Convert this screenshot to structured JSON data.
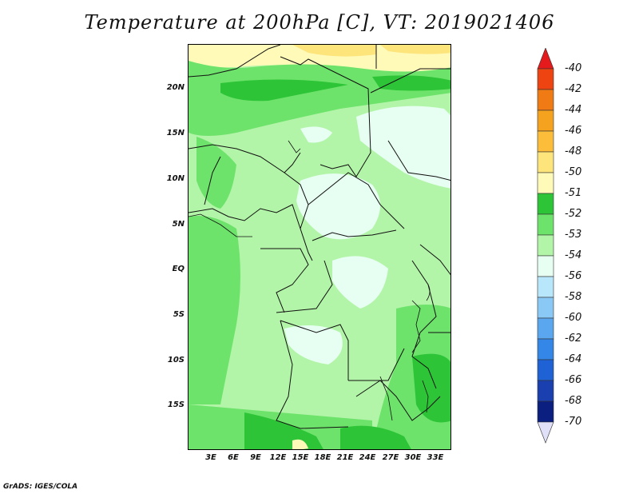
{
  "title": "Temperature at 200hPa [C], VT: 2019021406",
  "credit": "GrADS: IGES/COLA",
  "lat_ticks": [
    "20N",
    "15N",
    "10N",
    "5N",
    "EQ",
    "5S",
    "10S",
    "15S"
  ],
  "lon_ticks": [
    "3E",
    "6E",
    "9E",
    "12E",
    "15E",
    "18E",
    "21E",
    "24E",
    "27E",
    "30E",
    "33E"
  ],
  "colorbar": {
    "labels": [
      "-40",
      "-42",
      "-44",
      "-46",
      "-48",
      "-50",
      "-51",
      "-52",
      "-53",
      "-54",
      "-56",
      "-58",
      "-60",
      "-62",
      "-64",
      "-66",
      "-68",
      "-70"
    ],
    "colors": [
      "#e41a1c",
      "#ee4411",
      "#f07a13",
      "#f5a21e",
      "#fbbd3a",
      "#fde47b",
      "#fffab8",
      "#2ec437",
      "#6ee36b",
      "#b3f5a8",
      "#e6fff2",
      "#b8e6fb",
      "#8ac8f6",
      "#5aa6ef",
      "#3487e6",
      "#1f62d6",
      "#1a40b0",
      "#0a1f80",
      "#e0e0f8"
    ]
  },
  "field_colors": {
    "c50": "#fde47b",
    "c51": "#fffab8",
    "c52": "#2ec437",
    "c53": "#6ee36b",
    "c54": "#b3f5a8",
    "c56": "#e6fff2"
  }
}
